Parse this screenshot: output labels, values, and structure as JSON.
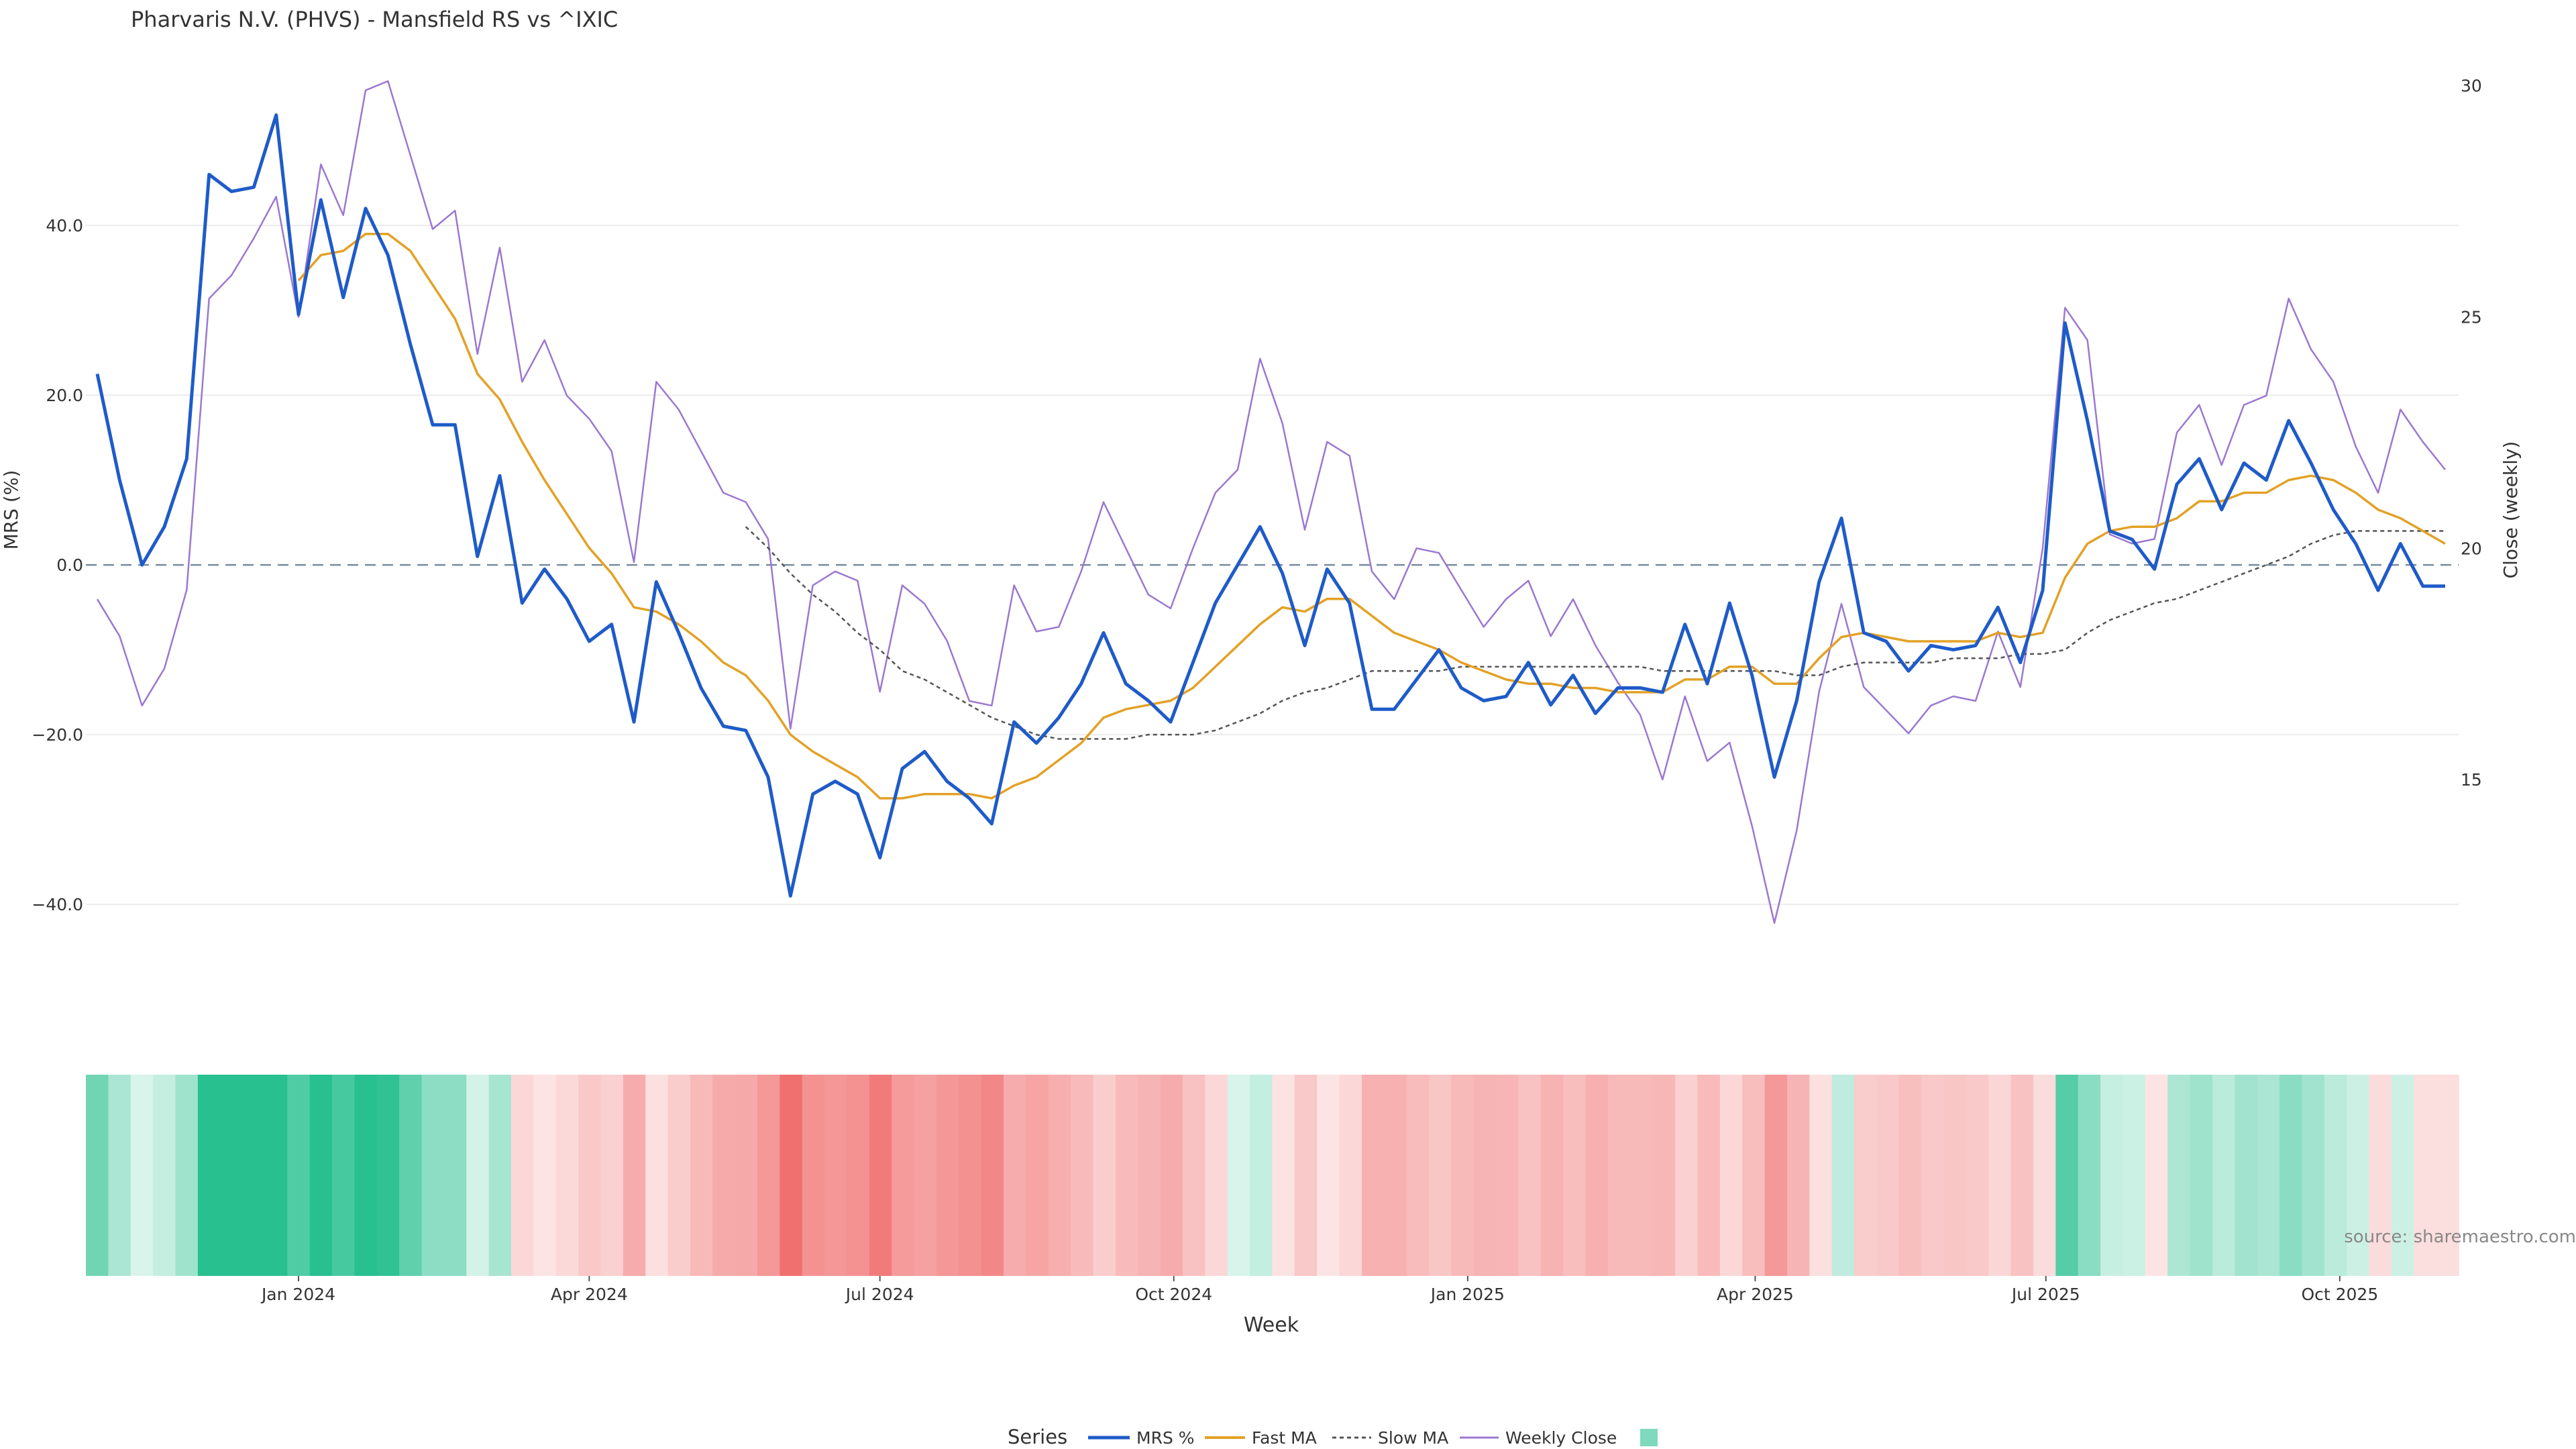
{
  "title": "Pharvaris N.V. (PHVS) - Mansfield RS vs ^IXIC",
  "source": "source: sharemaestro.com",
  "colors": {
    "mrs": "#1f5bc8",
    "fast": "#e3a126",
    "slow": "#555555",
    "close": "#9b78d0",
    "zero": "#7a8aa0",
    "grid": "#ececec",
    "heat_pos": "#29c08f",
    "heat_neg": "#f07070"
  },
  "chart_data": {
    "type": "line",
    "x_start": "2023-10-30",
    "x_step_days": 7,
    "xlabel": "Week",
    "ylabel_left": "MRS (%)",
    "ylabel_right": "Close (weekly)",
    "ylim_left": [
      -52,
      63
    ],
    "ylim_right": [
      10.1,
      31.2
    ],
    "yticks_left": [
      "40.0",
      "20.0",
      "0.0",
      "−20.0",
      "−40.0"
    ],
    "yticks_left_values": [
      40,
      20,
      0,
      -20,
      -40
    ],
    "yticks_right": [
      "30",
      "25",
      "20",
      "15"
    ],
    "yticks_right_values": [
      30,
      25,
      20,
      15
    ],
    "xticks": [
      {
        "date": "2024-01-01",
        "label": "Jan 2024"
      },
      {
        "date": "2024-04-01",
        "label": "Apr 2024"
      },
      {
        "date": "2024-07-01",
        "label": "Jul 2024"
      },
      {
        "date": "2024-10-01",
        "label": "Oct 2024"
      },
      {
        "date": "2025-01-01",
        "label": "Jan 2025"
      },
      {
        "date": "2025-04-01",
        "label": "Apr 2025"
      },
      {
        "date": "2025-07-01",
        "label": "Jul 2025"
      },
      {
        "date": "2025-10-01",
        "label": "Oct 2025"
      }
    ],
    "zero_line": 0,
    "legend_title": "Series",
    "legend_position": "bottom-center",
    "series": [
      {
        "name": "MRS %",
        "axis": "left",
        "values": [
          22.5,
          10,
          0,
          4.5,
          12.5,
          46,
          44,
          44.5,
          53,
          29.5,
          43,
          31.5,
          42,
          36.5,
          26,
          16.5,
          16.5,
          1,
          10.5,
          -4.5,
          -0.5,
          -4,
          -9,
          -7,
          -18.5,
          -2,
          -8,
          -14.5,
          -19,
          -19.5,
          -25,
          -39,
          -27,
          -25.5,
          -27,
          -34.5,
          -24,
          -22,
          -25.5,
          -27.5,
          -30.5,
          -18.5,
          -21,
          -18,
          -14,
          -8,
          -14,
          -16,
          -18.5,
          -11.5,
          -4.5,
          0,
          4.5,
          -1,
          -9.5,
          -0.5,
          -4.5,
          -17,
          -17,
          -13.5,
          -10,
          -14.5,
          -16,
          -15.5,
          -11.5,
          -16.5,
          -13,
          -17.5,
          -14.5,
          -14.5,
          -15,
          -7,
          -14,
          -4.5,
          -13,
          -25,
          -16,
          -2,
          5.5,
          -8,
          -9,
          -12.5,
          -9.5,
          -10,
          -9.5,
          -5,
          -11.5,
          -3,
          28.5,
          17,
          4,
          3,
          -0.5,
          9.5,
          12.5,
          6.5,
          12,
          10,
          17,
          12,
          6.5,
          2.5,
          -3,
          2.5,
          -2.5,
          -2.5
        ]
      },
      {
        "name": "Fast MA",
        "axis": "left",
        "values": [
          null,
          null,
          null,
          null,
          null,
          null,
          null,
          null,
          null,
          33.5,
          36.5,
          37,
          39,
          39,
          37,
          33,
          29,
          22.5,
          19.5,
          14.5,
          10,
          6,
          2,
          -1,
          -5,
          -5.5,
          -7,
          -9,
          -11.5,
          -13,
          -16,
          -20,
          -22,
          -23.5,
          -25,
          -27.5,
          -27.5,
          -27,
          -27,
          -27,
          -27.5,
          -26,
          -25,
          -23,
          -21,
          -18,
          -17,
          -16.5,
          -16,
          -14.5,
          -12,
          -9.5,
          -7,
          -5,
          -5.5,
          -4,
          -4,
          -6,
          -8,
          -9,
          -10,
          -11.5,
          -12.5,
          -13.5,
          -14,
          -14,
          -14.5,
          -14.5,
          -15,
          -15,
          -15,
          -13.5,
          -13.5,
          -12,
          -12,
          -14,
          -14,
          -11,
          -8.5,
          -8,
          -8.5,
          -9,
          -9,
          -9,
          -9,
          -8,
          -8.5,
          -8,
          -1.5,
          2.5,
          4,
          4.5,
          4.5,
          5.5,
          7.5,
          7.5,
          8.5,
          8.5,
          10,
          10.5,
          10,
          8.5,
          6.5,
          5.5,
          4,
          2.5
        ]
      },
      {
        "name": "Slow MA",
        "axis": "left",
        "values": [
          null,
          null,
          null,
          null,
          null,
          null,
          null,
          null,
          null,
          null,
          null,
          null,
          null,
          null,
          null,
          null,
          null,
          null,
          null,
          null,
          null,
          null,
          null,
          null,
          null,
          null,
          null,
          null,
          null,
          4.5,
          2,
          -1,
          -3.5,
          -5.5,
          -8,
          -10,
          -12.5,
          -13.5,
          -15,
          -16.5,
          -18,
          -19,
          -20,
          -20.5,
          -20.5,
          -20.5,
          -20.5,
          -20,
          -20,
          -20,
          -19.5,
          -18.5,
          -17.5,
          -16,
          -15,
          -14.5,
          -13.5,
          -12.5,
          -12.5,
          -12.5,
          -12.5,
          -12,
          -12,
          -12,
          -12,
          -12,
          -12,
          -12,
          -12,
          -12,
          -12.5,
          -12.5,
          -12.5,
          -12.5,
          -12.5,
          -12.5,
          -13,
          -13,
          -12,
          -11.5,
          -11.5,
          -11.5,
          -11.5,
          -11,
          -11,
          -11,
          -10.5,
          -10.5,
          -10,
          -8,
          -6.5,
          -5.5,
          -4.5,
          -4,
          -3,
          -2,
          -1,
          0,
          1,
          2.5,
          3.5,
          4,
          4,
          4,
          4,
          4
        ]
      },
      {
        "name": "Weekly Close",
        "axis": "right",
        "values": [
          18.9,
          18.1,
          16.6,
          17.4,
          19.1,
          25.4,
          25.9,
          26.7,
          27.6,
          25,
          28.3,
          27.2,
          29.9,
          30.1,
          28.5,
          26.9,
          27.3,
          24.2,
          26.5,
          23.6,
          24.5,
          23.3,
          22.8,
          22.1,
          19.7,
          23.6,
          23,
          22.1,
          21.2,
          21,
          20.2,
          16.1,
          19.2,
          19.5,
          19.3,
          16.9,
          19.2,
          18.8,
          18,
          16.7,
          16.6,
          19.2,
          18.2,
          18.3,
          19.5,
          21,
          20,
          19,
          18.7,
          20,
          21.2,
          21.7,
          24.1,
          22.7,
          20.4,
          22.3,
          22,
          19.5,
          18.9,
          20,
          19.9,
          19.1,
          18.3,
          18.9,
          19.3,
          18.1,
          18.9,
          17.9,
          17.1,
          16.4,
          15,
          16.8,
          15.4,
          15.8,
          14,
          11.9,
          13.9,
          16.9,
          18.8,
          17,
          16.5,
          16,
          16.6,
          16.8,
          16.7,
          18.2,
          17,
          20,
          25.2,
          24.5,
          20.3,
          20.1,
          20.2,
          22.5,
          23.1,
          21.8,
          23.1,
          23.3,
          25.4,
          24.3,
          23.6,
          22.2,
          21.2,
          23,
          22.3,
          21.7
        ]
      },
      {
        "name": "",
        "axis": "heatmap",
        "legend_swatch": true,
        "color_source": "MRS %"
      }
    ]
  }
}
